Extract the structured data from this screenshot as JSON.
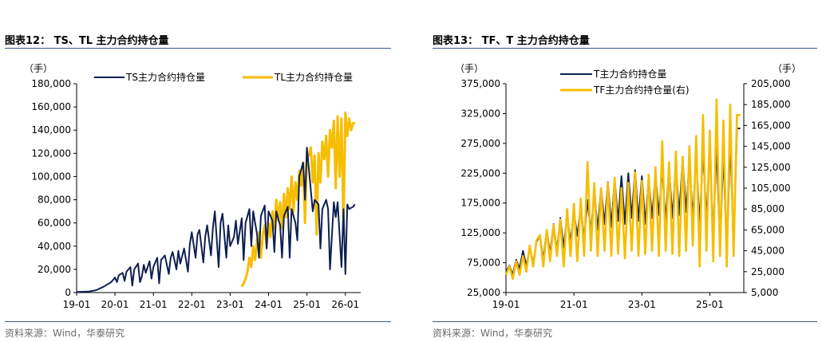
{
  "colors": {
    "navy": "#0e2051",
    "gold": "#f7bd00",
    "rule": "#3b5b8e",
    "source_gray": "#6b6b6b"
  },
  "left": {
    "title": "图表12：  TS、TL 主力合约持仓量",
    "source": "资料来源：Wind，华泰研究",
    "unit_left": "（手）"
  },
  "right": {
    "title": "图表13：  TF、T 主力合约持仓量",
    "source": "资料来源：Wind，华泰研究",
    "unit_left": "（手）",
    "unit_right": "（手）"
  },
  "chart_data": [
    {
      "type": "line",
      "title": "",
      "x_ticks": [
        "19-01",
        "20-01",
        "21-01",
        "22-01",
        "23-01",
        "24-01",
        "25-01",
        "26-01"
      ],
      "y_ticks": [
        "180,000",
        "160,000",
        "140,000",
        "120,000",
        "100,000",
        "80,000",
        "60,000",
        "40,000",
        "20,000",
        "0"
      ],
      "ylim": [
        0,
        180000
      ],
      "legend": "top",
      "series": [
        {
          "name": "TS主力合约持仓量",
          "color": "#0e2051",
          "x": [
            2019.0,
            2019.3,
            2019.5,
            2019.7,
            2019.8,
            2019.9,
            2020.0,
            2020.05,
            2020.1,
            2020.2,
            2020.25,
            2020.3,
            2020.4,
            2020.45,
            2020.5,
            2020.6,
            2020.65,
            2020.7,
            2020.75,
            2020.8,
            2020.9,
            2020.95,
            2021.0,
            2021.1,
            2021.15,
            2021.2,
            2021.3,
            2021.4,
            2021.45,
            2021.5,
            2021.6,
            2021.65,
            2021.7,
            2021.8,
            2021.9,
            2021.95,
            2022.0,
            2022.1,
            2022.15,
            2022.2,
            2022.3,
            2022.35,
            2022.4,
            2022.5,
            2022.55,
            2022.6,
            2022.7,
            2022.75,
            2022.8,
            2022.9,
            2022.95,
            2023.0,
            2023.1,
            2023.15,
            2023.2,
            2023.3,
            2023.35,
            2023.4,
            2023.5,
            2023.55,
            2023.6,
            2023.7,
            2023.75,
            2023.8,
            2023.9,
            2023.95,
            2024.0,
            2024.1,
            2024.15,
            2024.2,
            2024.3,
            2024.35,
            2024.4,
            2024.5,
            2024.55,
            2024.6,
            2024.7,
            2024.75,
            2024.8,
            2024.9,
            2024.95,
            2025.0,
            2025.1,
            2025.15,
            2025.2,
            2025.3,
            2025.35,
            2025.4,
            2025.5,
            2025.55,
            2025.6,
            2025.7,
            2025.75,
            2025.8,
            2025.9,
            2025.95,
            2026.0,
            2026.05,
            2026.1,
            2026.2,
            2026.25
          ],
          "y": [
            500,
            800,
            2000,
            5000,
            7000,
            9000,
            13000,
            9000,
            15000,
            17000,
            10000,
            18000,
            22000,
            6000,
            20000,
            25000,
            9000,
            14000,
            24000,
            17000,
            27000,
            12000,
            22000,
            30000,
            8000,
            28000,
            32000,
            16000,
            30000,
            35000,
            20000,
            36000,
            25000,
            38000,
            18000,
            42000,
            52000,
            30000,
            50000,
            54000,
            26000,
            48000,
            58000,
            32000,
            56000,
            70000,
            22000,
            60000,
            68000,
            30000,
            58000,
            40000,
            48000,
            62000,
            42000,
            64000,
            28000,
            60000,
            72000,
            40000,
            70000,
            50000,
            30000,
            66000,
            75000,
            38000,
            70000,
            62000,
            35000,
            70000,
            58000,
            30000,
            66000,
            74000,
            30000,
            72000,
            60000,
            45000,
            100000,
            112000,
            80000,
            125000,
            88000,
            70000,
            80000,
            76000,
            38000,
            72000,
            80000,
            72000,
            20000,
            78000,
            65000,
            78000,
            22000,
            72000,
            16000,
            76000,
            72000,
            74000,
            76000
          ]
        },
        {
          "name": "TL主力合约持仓量",
          "color": "#f7bd00",
          "x": [
            2023.3,
            2023.35,
            2023.4,
            2023.45,
            2023.5,
            2023.55,
            2023.6,
            2023.65,
            2023.7,
            2023.75,
            2023.8,
            2023.85,
            2023.9,
            2023.95,
            2024.0,
            2024.05,
            2024.1,
            2024.15,
            2024.2,
            2024.25,
            2024.3,
            2024.35,
            2024.4,
            2024.45,
            2024.5,
            2024.55,
            2024.6,
            2024.65,
            2024.7,
            2024.75,
            2024.8,
            2024.85,
            2024.9,
            2024.95,
            2025.0,
            2025.05,
            2025.1,
            2025.15,
            2025.2,
            2025.25,
            2025.3,
            2025.35,
            2025.4,
            2025.45,
            2025.5,
            2025.55,
            2025.6,
            2025.65,
            2025.7,
            2025.75,
            2025.8,
            2025.85,
            2025.9,
            2025.95,
            2026.0,
            2026.05,
            2026.1,
            2026.15,
            2026.2,
            2026.25
          ],
          "y": [
            5000,
            8000,
            12000,
            18000,
            30000,
            22000,
            40000,
            28000,
            45000,
            52000,
            30000,
            50000,
            58000,
            40000,
            60000,
            48000,
            70000,
            55000,
            80000,
            62000,
            78000,
            55000,
            85000,
            65000,
            90000,
            72000,
            100000,
            70000,
            95000,
            80000,
            105000,
            92000,
            112000,
            60000,
            120000,
            118000,
            125000,
            95000,
            118000,
            50000,
            120000,
            95000,
            130000,
            115000,
            135000,
            100000,
            140000,
            125000,
            148000,
            90000,
            152000,
            100000,
            150000,
            60000,
            155000,
            135000,
            150000,
            140000,
            146000,
            146000
          ]
        }
      ]
    },
    {
      "type": "line",
      "title": "",
      "x_ticks": [
        "19-01",
        "21-01",
        "23-01",
        "25-01"
      ],
      "y_ticks_left": [
        "375,000",
        "325,000",
        "275,000",
        "225,000",
        "175,000",
        "125,000",
        "75,000",
        "25,000"
      ],
      "y_ticks_right": [
        "205,000",
        "185,000",
        "165,000",
        "145,000",
        "125,000",
        "105,000",
        "85,000",
        "65,000",
        "45,000",
        "25,000",
        "5,000"
      ],
      "ylim_left": [
        25000,
        375000
      ],
      "ylim_right": [
        5000,
        205000
      ],
      "legend": "top",
      "series": [
        {
          "name": "T主力合约持仓量",
          "axis": "left",
          "color": "#0e2051",
          "x": [
            2019.0,
            2019.1,
            2019.2,
            2019.3,
            2019.4,
            2019.5,
            2019.6,
            2019.7,
            2019.8,
            2019.9,
            2020.0,
            2020.1,
            2020.2,
            2020.3,
            2020.4,
            2020.5,
            2020.6,
            2020.7,
            2020.8,
            2020.9,
            2021.0,
            2021.1,
            2021.2,
            2021.3,
            2021.4,
            2021.5,
            2021.6,
            2021.7,
            2021.8,
            2021.9,
            2022.0,
            2022.1,
            2022.2,
            2022.3,
            2022.4,
            2022.5,
            2022.6,
            2022.7,
            2022.8,
            2022.9,
            2023.0,
            2023.1,
            2023.2,
            2023.3,
            2023.4,
            2023.5,
            2023.6,
            2023.7,
            2023.8,
            2023.9,
            2024.0,
            2024.1,
            2024.2,
            2024.3,
            2024.4,
            2024.5,
            2024.6,
            2024.7,
            2024.8,
            2024.9,
            2025.0,
            2025.1,
            2025.2,
            2025.3,
            2025.4,
            2025.5,
            2025.6,
            2025.7,
            2025.8,
            2025.9
          ],
          "y": [
            60000,
            70000,
            55000,
            80000,
            65000,
            95000,
            70000,
            100000,
            75000,
            110000,
            120000,
            80000,
            130000,
            90000,
            140000,
            95000,
            150000,
            100000,
            155000,
            110000,
            160000,
            120000,
            170000,
            115000,
            180000,
            125000,
            195000,
            130000,
            200000,
            140000,
            210000,
            135000,
            215000,
            145000,
            220000,
            140000,
            225000,
            150000,
            230000,
            145000,
            220000,
            140000,
            215000,
            150000,
            225000,
            155000,
            230000,
            145000,
            235000,
            150000,
            240000,
            155000,
            250000,
            160000,
            245000,
            150000,
            255000,
            140000,
            260000,
            150000,
            265000,
            120000,
            270000,
            100000,
            260000,
            85000,
            280000,
            110000,
            300000,
            300000
          ]
        },
        {
          "name": "TF主力合约持仓量(右)",
          "axis": "right",
          "color": "#f7bd00",
          "x": [
            2019.0,
            2019.1,
            2019.2,
            2019.3,
            2019.4,
            2019.5,
            2019.6,
            2019.7,
            2019.8,
            2019.9,
            2020.0,
            2020.1,
            2020.2,
            2020.3,
            2020.4,
            2020.5,
            2020.6,
            2020.7,
            2020.8,
            2020.9,
            2021.0,
            2021.1,
            2021.2,
            2021.3,
            2021.4,
            2021.5,
            2021.6,
            2021.7,
            2021.8,
            2021.9,
            2022.0,
            2022.1,
            2022.2,
            2022.3,
            2022.4,
            2022.5,
            2022.6,
            2022.7,
            2022.8,
            2022.9,
            2023.0,
            2023.1,
            2023.2,
            2023.3,
            2023.4,
            2023.5,
            2023.6,
            2023.7,
            2023.8,
            2023.9,
            2024.0,
            2024.1,
            2024.2,
            2024.3,
            2024.4,
            2024.5,
            2024.6,
            2024.7,
            2024.8,
            2024.9,
            2025.0,
            2025.1,
            2025.2,
            2025.3,
            2025.4,
            2025.5,
            2025.6,
            2025.7,
            2025.8,
            2025.9
          ],
          "y": [
            22000,
            30000,
            18000,
            35000,
            22000,
            40000,
            25000,
            50000,
            30000,
            55000,
            60000,
            30000,
            65000,
            35000,
            70000,
            40000,
            75000,
            30000,
            85000,
            40000,
            90000,
            35000,
            95000,
            40000,
            130000,
            45000,
            110000,
            40000,
            105000,
            45000,
            110000,
            40000,
            115000,
            42000,
            105000,
            38000,
            110000,
            45000,
            120000,
            40000,
            112000,
            42000,
            118000,
            45000,
            125000,
            40000,
            150000,
            45000,
            130000,
            42000,
            140000,
            40000,
            135000,
            45000,
            145000,
            50000,
            155000,
            30000,
            175000,
            45000,
            160000,
            35000,
            190000,
            40000,
            170000,
            30000,
            185000,
            40000,
            175000,
            175000
          ]
        }
      ]
    }
  ]
}
